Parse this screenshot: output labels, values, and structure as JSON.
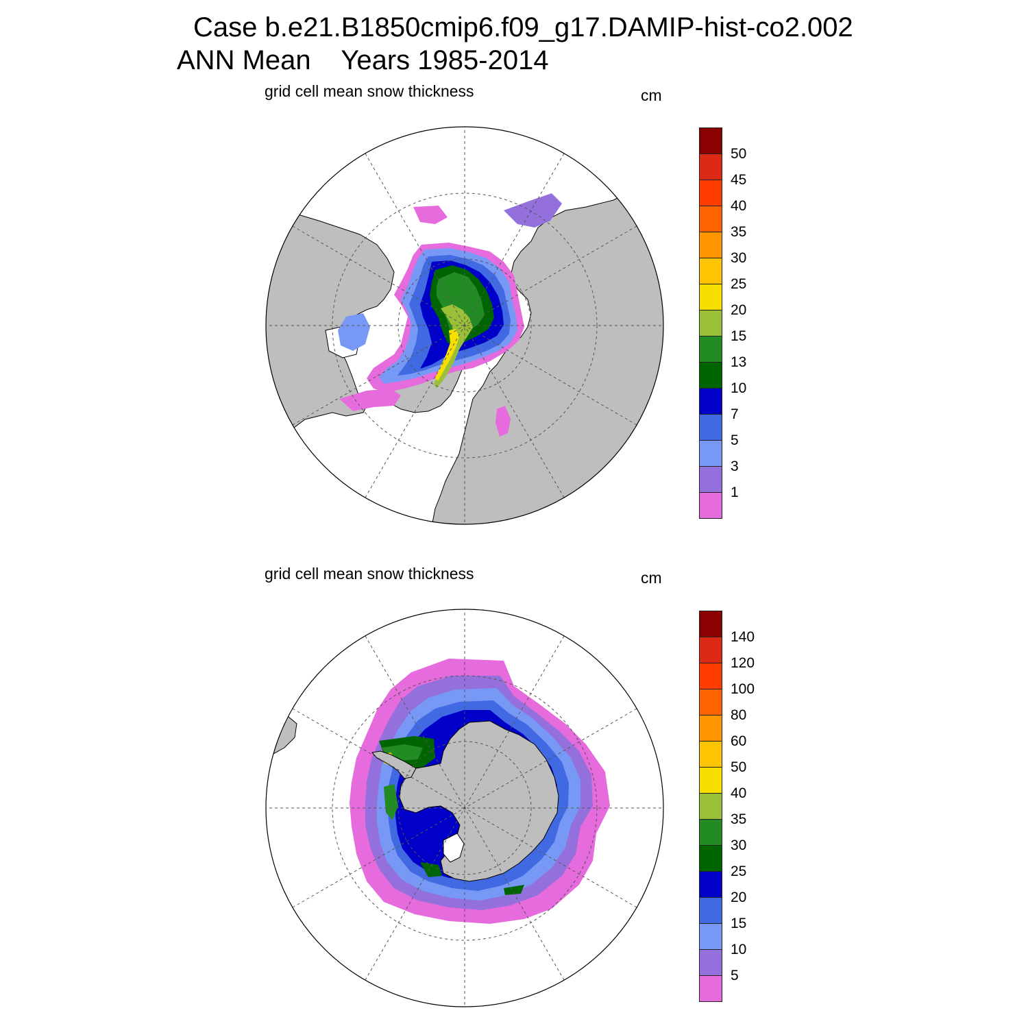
{
  "title": {
    "line1": "Case b.e21.B1850cmip6.f09_g17.DAMIP-hist-co2.002",
    "line2": "ANN Mean    Years 1985-2014"
  },
  "panels": [
    {
      "id": "north",
      "title": "grid cell mean snow thickness",
      "units": "cm",
      "legend": {
        "labels": [
          "50",
          "45",
          "40",
          "35",
          "30",
          "25",
          "20",
          "15",
          "13",
          "10",
          "7",
          "5",
          "3",
          "1"
        ],
        "colors": [
          "#8b0000",
          "#dd2a14",
          "#ff3d00",
          "#ff6400",
          "#ff9600",
          "#ffc300",
          "#f7e000",
          "#9ac037",
          "#238b23",
          "#006400",
          "#0000c8",
          "#4169e1",
          "#7799f5",
          "#9370db",
          "#e66cdd"
        ]
      }
    },
    {
      "id": "south",
      "title": "grid cell mean snow thickness",
      "units": "cm",
      "legend": {
        "labels": [
          "140",
          "120",
          "100",
          "80",
          "60",
          "50",
          "40",
          "35",
          "30",
          "25",
          "20",
          "15",
          "10",
          "5"
        ],
        "colors": [
          "#8b0000",
          "#dd2a14",
          "#ff3d00",
          "#ff6400",
          "#ff9600",
          "#ffc300",
          "#f7e000",
          "#9ac037",
          "#238b23",
          "#006400",
          "#0000c8",
          "#4169e1",
          "#7799f5",
          "#9370db",
          "#e66cdd"
        ]
      }
    }
  ],
  "colors": {
    "land": "#bebebe",
    "ocean": "#ffffff",
    "coastline": "#000000"
  }
}
